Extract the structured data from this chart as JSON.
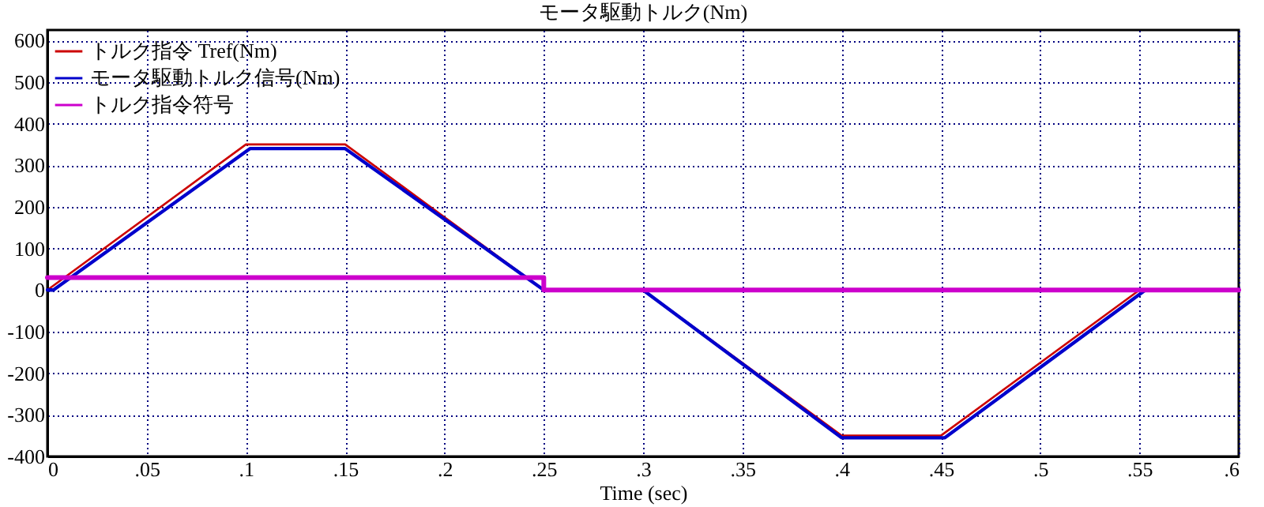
{
  "chart_data": {
    "type": "line",
    "title": "モータ駆動トルク(Nm)",
    "xlabel": "Time (sec)",
    "xlim": [
      0,
      0.6
    ],
    "xticks": [
      0,
      {
        "value": 0.05,
        "label": ".05"
      },
      {
        "value": 0.1,
        "label": ".1"
      },
      {
        "value": 0.15,
        "label": ".15"
      },
      {
        "value": 0.2,
        "label": ".2"
      },
      {
        "value": 0.25,
        "label": ".25"
      },
      {
        "value": 0.3,
        "label": ".3"
      },
      {
        "value": 0.35,
        "label": ".35"
      },
      {
        "value": 0.4,
        "label": ".4"
      },
      {
        "value": 0.45,
        "label": ".45"
      },
      {
        "value": 0.5,
        "label": ".5"
      },
      {
        "value": 0.55,
        "label": ".55"
      },
      {
        "value": 0.6,
        "label": ".6"
      }
    ],
    "ylim": [
      -400,
      625
    ],
    "yticks": [
      -400,
      -300,
      -200,
      -100,
      0,
      100,
      200,
      300,
      400,
      500,
      600
    ],
    "grid": true,
    "legend": "top left",
    "series": [
      {
        "name": "トルク指令 Tref(Nm)",
        "color": "#cc0000",
        "x": [
          0,
          0.1,
          0.15,
          0.25,
          0.3,
          0.4,
          0.45,
          0.55,
          0.6
        ],
        "values": [
          0,
          350,
          350,
          0,
          0,
          -350,
          -350,
          0,
          0
        ]
      },
      {
        "name": "モータ駆動トルク信号(Nm)",
        "color": "#0000cc",
        "x": [
          0,
          0.003,
          0.102,
          0.15,
          0.25,
          0.3,
          0.4,
          0.452,
          0.553,
          0.6
        ],
        "values": [
          0,
          0,
          340,
          340,
          0,
          0,
          -355,
          -355,
          0,
          0
        ]
      },
      {
        "name": "トルク指令符号",
        "color": "#cc00cc",
        "x": [
          0,
          0.25,
          0.25,
          0.6
        ],
        "values": [
          30,
          30,
          0,
          0
        ]
      }
    ]
  }
}
